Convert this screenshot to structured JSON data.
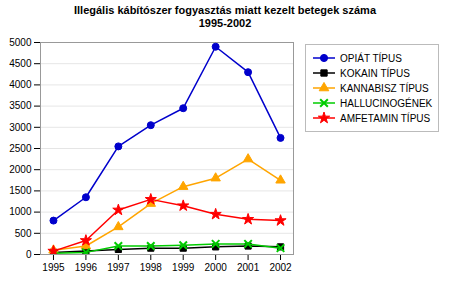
{
  "chart_data": {
    "type": "line",
    "title": "Illegális kábítószer fogyasztás miatt kezelt betegek száma",
    "subtitle": "1995-2002",
    "x": [
      1995,
      1996,
      1997,
      1998,
      1999,
      2000,
      2001,
      2002
    ],
    "xlim": [
      1994.6,
      2002.4
    ],
    "xticks": [
      1995,
      1996,
      1997,
      1998,
      1999,
      2000,
      2001,
      2002
    ],
    "ylim": [
      0,
      5000
    ],
    "yticks": [
      0,
      500,
      1000,
      1500,
      2000,
      2500,
      3000,
      3500,
      4000,
      4500,
      5000
    ],
    "grid": "y",
    "legend": "right",
    "series": [
      {
        "name": "OPIÁT TÍPUS",
        "color": "#0000CC",
        "marker": "circle",
        "values": [
          800,
          1350,
          2550,
          3050,
          3450,
          4900,
          4300,
          2750
        ]
      },
      {
        "name": "KOKAIN TÍPUS",
        "color": "#000000",
        "marker": "square",
        "values": [
          50,
          80,
          120,
          150,
          150,
          180,
          200,
          180
        ]
      },
      {
        "name": "KANNABISZ TÍPUS",
        "color": "#FFA500",
        "marker": "triangle",
        "values": [
          100,
          200,
          650,
          1200,
          1600,
          1800,
          2250,
          1750
        ]
      },
      {
        "name": "HALLUCINOGÉNEK",
        "color": "#00CC00",
        "marker": "times",
        "values": [
          30,
          50,
          200,
          200,
          220,
          250,
          250,
          150
        ]
      },
      {
        "name": "AMFETAMIN TÍPUS",
        "color": "#FF0000",
        "marker": "star",
        "values": [
          80,
          330,
          1050,
          1300,
          1150,
          950,
          830,
          800
        ]
      }
    ]
  }
}
